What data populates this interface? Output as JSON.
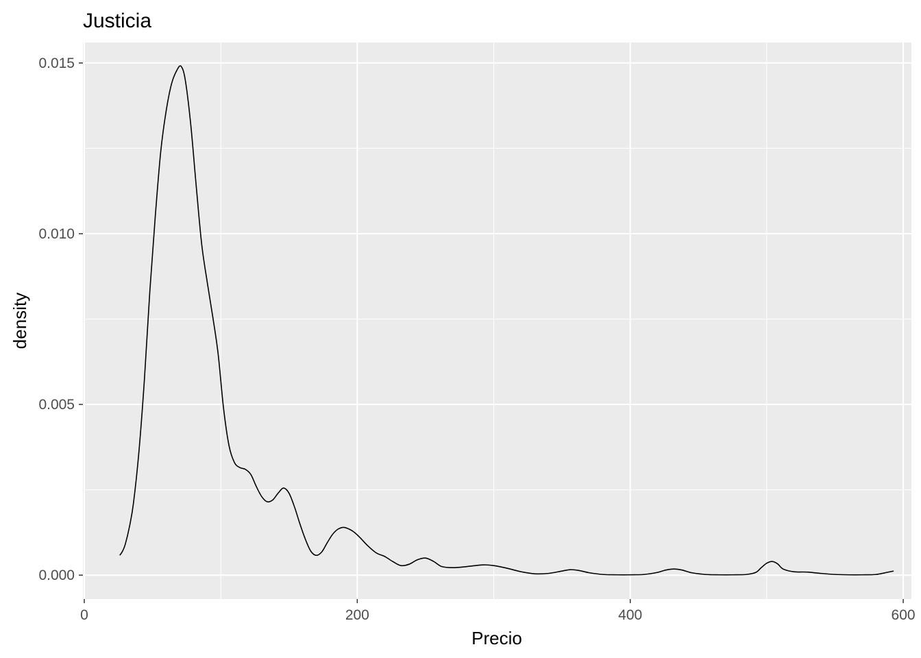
{
  "chart_data": {
    "type": "line",
    "title": "Justicia",
    "xlabel": "Precio",
    "ylabel": "density",
    "xlim": [
      -1,
      606
    ],
    "ylim": [
      -0.0007,
      0.0156
    ],
    "x_ticks": [
      0,
      200,
      400,
      600
    ],
    "x_tick_labels": [
      "0",
      "200",
      "400",
      "600"
    ],
    "y_ticks": [
      0,
      0.005,
      0.01,
      0.015
    ],
    "y_tick_labels": [
      "0.000",
      "0.005",
      "0.010",
      "0.015"
    ],
    "grid": true,
    "panel_color": "#ebebeb",
    "grid_color": "#ffffff",
    "line_color": "#000000",
    "series": [
      {
        "name": "density",
        "x": [
          26,
          28,
          30,
          33,
          36,
          40,
          44,
          48,
          52,
          56,
          60,
          64,
          68,
          71,
          74,
          78,
          82,
          86,
          90,
          94,
          98,
          102,
          106,
          110,
          114,
          118,
          122,
          126,
          130,
          134,
          138,
          142,
          146,
          150,
          154,
          158,
          162,
          166,
          170,
          174,
          178,
          182,
          186,
          190,
          194,
          198,
          202,
          208,
          214,
          220,
          226,
          232,
          238,
          244,
          250,
          256,
          262,
          270,
          280,
          292,
          300,
          310,
          320,
          330,
          340,
          350,
          356,
          362,
          370,
          380,
          390,
          400,
          410,
          420,
          426,
          432,
          438,
          445,
          455,
          465,
          475,
          485,
          492,
          496,
          500,
          504,
          508,
          512,
          520,
          530,
          540,
          550,
          560,
          570,
          580,
          588,
          593
        ],
        "y": [
          0.00058,
          0.0007,
          0.0009,
          0.0014,
          0.0021,
          0.0036,
          0.0057,
          0.0083,
          0.0105,
          0.0124,
          0.0136,
          0.0144,
          0.0148,
          0.0149,
          0.0145,
          0.0132,
          0.0114,
          0.0097,
          0.0086,
          0.0076,
          0.0065,
          0.0049,
          0.0038,
          0.0033,
          0.00315,
          0.0031,
          0.00295,
          0.0026,
          0.0023,
          0.00215,
          0.0022,
          0.0024,
          0.00255,
          0.0024,
          0.002,
          0.0015,
          0.00105,
          0.0007,
          0.00058,
          0.00068,
          0.00095,
          0.0012,
          0.00135,
          0.0014,
          0.00135,
          0.00125,
          0.0011,
          0.00085,
          0.00065,
          0.00055,
          0.0004,
          0.00028,
          0.00032,
          0.00045,
          0.0005,
          0.0004,
          0.00025,
          0.00022,
          0.00025,
          0.0003,
          0.00028,
          0.0002,
          0.0001,
          4e-05,
          5e-05,
          0.00012,
          0.00016,
          0.00014,
          7e-05,
          2e-05,
          1e-05,
          1e-05,
          2e-05,
          8e-05,
          0.00015,
          0.00018,
          0.00015,
          7e-05,
          2e-05,
          1e-05,
          1e-05,
          2e-05,
          8e-05,
          0.00022,
          0.00035,
          0.0004,
          0.00033,
          0.00018,
          0.0001,
          9e-05,
          5e-05,
          2e-05,
          1e-05,
          1e-05,
          2e-05,
          8e-05,
          0.00012
        ]
      }
    ]
  }
}
